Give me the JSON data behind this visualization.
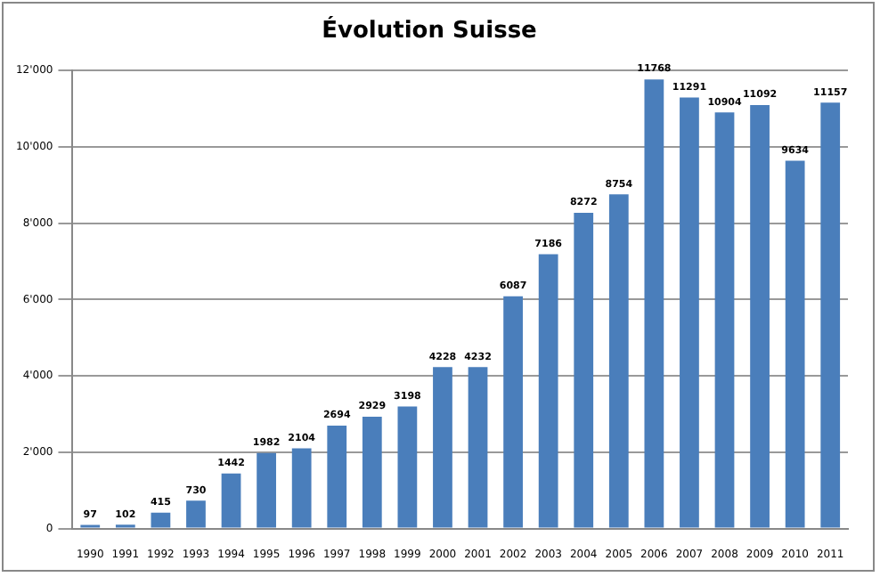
{
  "chart_data": {
    "type": "bar",
    "title": "Évolution Suisse",
    "categories": [
      "1990",
      "1991",
      "1992",
      "1993",
      "1994",
      "1995",
      "1996",
      "1997",
      "1998",
      "1999",
      "2000",
      "2001",
      "2002",
      "2003",
      "2004",
      "2005",
      "2006",
      "2007",
      "2008",
      "2009",
      "2010",
      "2011"
    ],
    "values": [
      97,
      102,
      415,
      730,
      1442,
      1982,
      2104,
      2694,
      2929,
      3198,
      4228,
      4232,
      6087,
      7186,
      8272,
      8754,
      11768,
      11291,
      10904,
      11092,
      9634,
      11157
    ],
    "color": "#4a7ebb",
    "ylim": [
      0,
      12000
    ],
    "yticks": [
      0,
      {
        "value": 2000,
        "label": "2'000"
      },
      {
        "value": 4000,
        "label": "4'000"
      },
      {
        "value": 6000,
        "label": "6'000"
      },
      {
        "value": 8000,
        "label": "8'000"
      },
      {
        "value": 10000,
        "label": "10'000"
      },
      {
        "value": 12000,
        "label": "12'000"
      }
    ],
    "grid": "y",
    "legend": false,
    "data_labels": true
  }
}
